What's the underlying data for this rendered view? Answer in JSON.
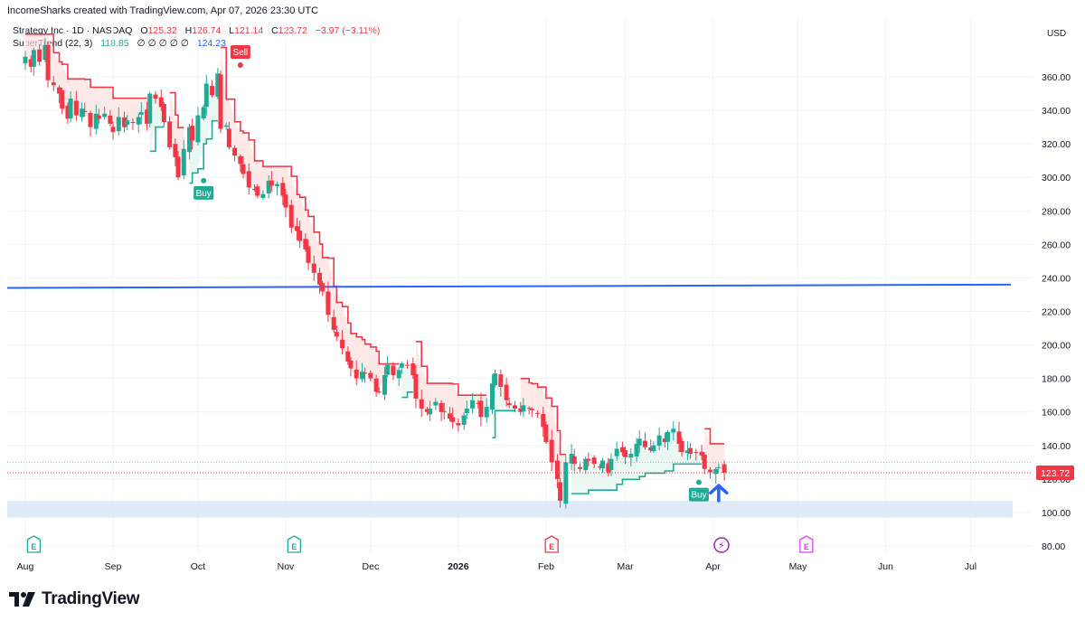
{
  "header": {
    "attribution": "IncomeSharks created with TradingView.com, Apr 07, 2026 23:30 UTC"
  },
  "legend": {
    "symbol": "Strategy Inc · 1D · NASDAQ",
    "o_label": "O",
    "o": "125.32",
    "h_label": "H",
    "h": "126.74",
    "l_label": "L",
    "l": "121.14",
    "c_label": "C",
    "c": "123.72",
    "change": "−3.97 (−3.11%)",
    "indicator": "SuperTrend (22, 3)",
    "ind_val1": "118.85",
    "ind_zeros": "∅ ∅ ∅ ∅ ∅",
    "ind_val2": "124.23"
  },
  "currency": "USD",
  "last_price_label": "123.72",
  "footer": {
    "brand": "TradingView"
  },
  "colors": {
    "up": "#22ab94",
    "down": "#f23645",
    "st_down": "#f23645",
    "st_up": "#22ab94",
    "fill_down": "#fde0e0",
    "fill_up": "#e2f4ec",
    "trend_line": "#2962ff",
    "zone": "#dbe6f7",
    "arrow": "#2962ff"
  },
  "chart_data": {
    "type": "candlestick",
    "title": "Strategy Inc · 1D · NASDAQ",
    "ylim": [
      75,
      395
    ],
    "y_ticks": [
      "360.00",
      "340.00",
      "320.00",
      "300.00",
      "280.00",
      "260.00",
      "240.00",
      "220.00",
      "200.00",
      "180.00",
      "160.00",
      "140.00",
      "120.00",
      "100.00",
      "80.00"
    ],
    "y_tick_values": [
      360,
      340,
      320,
      300,
      280,
      260,
      240,
      220,
      200,
      180,
      160,
      140,
      120,
      100,
      80
    ],
    "x_labels": [
      "Aug",
      "Sep",
      "Oct",
      "Nov",
      "Dec",
      "2026",
      "Feb",
      "Mar",
      "Apr",
      "May",
      "Jun",
      "Jul"
    ],
    "x_label_days": [
      0,
      31,
      61,
      92,
      122,
      153,
      184,
      212,
      243,
      273,
      304,
      334
    ],
    "bars_closes": [
      372,
      366,
      376,
      369,
      379,
      358,
      355,
      350,
      341,
      335,
      347,
      337,
      341,
      339,
      330,
      338,
      335,
      338,
      332,
      327,
      336,
      330,
      334,
      333,
      336,
      339,
      332,
      350,
      347,
      342,
      333,
      318,
      312,
      300,
      317,
      330,
      322,
      337,
      342,
      356,
      349,
      362,
      329,
      331,
      318,
      313,
      308,
      302,
      294,
      293,
      289,
      290,
      298,
      295,
      296,
      289,
      282,
      270,
      268,
      262,
      257,
      249,
      243,
      236,
      232,
      218,
      209,
      205,
      198,
      190,
      186,
      180,
      184,
      183,
      180,
      172,
      172,
      182,
      188,
      182,
      185,
      189,
      188,
      182,
      168,
      162,
      160,
      162,
      166,
      160,
      160,
      156,
      154,
      152,
      158,
      162,
      167,
      165,
      157,
      163,
      177,
      183,
      175,
      167,
      164,
      162,
      160,
      164,
      162,
      161,
      159,
      151,
      142,
      130,
      120,
      107,
      130,
      135,
      129,
      126,
      132,
      131,
      129,
      127,
      131,
      124,
      132,
      138,
      136,
      133,
      135,
      141,
      144,
      139,
      137,
      140,
      146,
      142,
      148,
      150,
      141,
      136,
      137,
      135,
      136,
      134,
      126,
      124,
      126,
      127,
      123.72
    ],
    "supertrend": {
      "down_to_day": 199,
      "up_from_day": 199
    },
    "trend_line": {
      "from": {
        "day": 0,
        "price": 234
      },
      "to": {
        "day": 365,
        "price": 236
      }
    },
    "support_zone": [
      97,
      107
    ],
    "last_close": 123.72,
    "markers": [
      {
        "label": "Buy",
        "day": 63,
        "price": 298,
        "type": "buy"
      },
      {
        "label": "Sell",
        "day": 76,
        "price": 367,
        "type": "sell"
      },
      {
        "label": "Buy",
        "day": 238,
        "price": 118,
        "type": "buy"
      }
    ]
  },
  "events": [
    {
      "type": "earnings",
      "day": 3,
      "color": "#22ab94",
      "glyph": "E"
    },
    {
      "type": "earnings",
      "day": 95,
      "color": "#22ab94",
      "glyph": "E"
    },
    {
      "type": "earnings",
      "day": 186,
      "color": "#f23645",
      "glyph": "E"
    },
    {
      "type": "flash",
      "day": 246,
      "color": "#9c27b0",
      "glyph": "⚡"
    },
    {
      "type": "earnings",
      "day": 276,
      "color": "#e040fb",
      "glyph": "E"
    }
  ]
}
